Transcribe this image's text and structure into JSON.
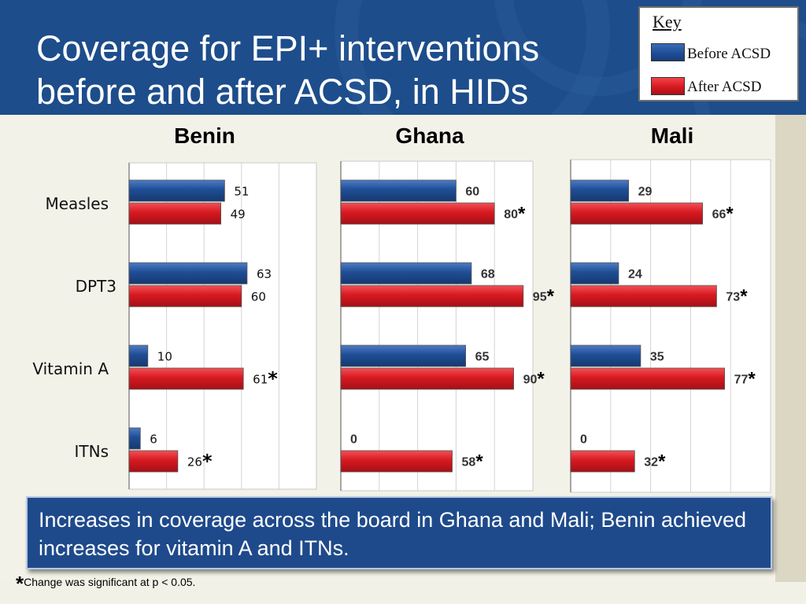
{
  "title": "Coverage for EPI+ interventions\nbefore and after ACSD, in HIDs",
  "key": {
    "title": "Key",
    "items": [
      {
        "label": "Before ACSD",
        "color": "#1f4e96"
      },
      {
        "label": "After ACSD",
        "color": "#d71920"
      }
    ]
  },
  "row_labels": [
    "Measles",
    "DPT3",
    "Vitamin A",
    "ITNs"
  ],
  "chart_data": [
    {
      "type": "bar",
      "orientation": "horizontal",
      "title": "Benin",
      "categories": [
        "Measles",
        "DPT3",
        "Vitamin A",
        "ITNs"
      ],
      "series": [
        {
          "name": "Before ACSD",
          "color": "#1f4e96",
          "values": [
            51,
            63,
            10,
            6
          ]
        },
        {
          "name": "After ACSD",
          "color": "#d71920",
          "values": [
            49,
            60,
            61,
            26
          ]
        }
      ],
      "significant_after": [
        false,
        false,
        true,
        true
      ],
      "xlim": [
        0,
        100
      ],
      "grid": true
    },
    {
      "type": "bar",
      "orientation": "horizontal",
      "title": "Ghana",
      "categories": [
        "Measles",
        "DPT3",
        "Vitamin A",
        "ITNs"
      ],
      "series": [
        {
          "name": "Before ACSD",
          "color": "#1f4e96",
          "values": [
            60,
            68,
            65,
            0
          ]
        },
        {
          "name": "After ACSD",
          "color": "#d71920",
          "values": [
            80,
            95,
            90,
            58
          ]
        }
      ],
      "significant_after": [
        true,
        true,
        true,
        true
      ],
      "xlim": [
        0,
        100
      ],
      "grid": true
    },
    {
      "type": "bar",
      "orientation": "horizontal",
      "title": "Mali",
      "categories": [
        "Measles",
        "DPT3",
        "Vitamin A",
        "ITNs"
      ],
      "series": [
        {
          "name": "Before ACSD",
          "color": "#1f4e96",
          "values": [
            29,
            24,
            35,
            0
          ]
        },
        {
          "name": "After ACSD",
          "color": "#d71920",
          "values": [
            66,
            73,
            77,
            32
          ]
        }
      ],
      "significant_after": [
        true,
        true,
        true,
        true
      ],
      "xlim": [
        0,
        100
      ],
      "grid": true
    }
  ],
  "significance_mark": "*",
  "summary": "Increases in coverage across the board in Ghana and Mali; Benin achieved increases for vitamin A and ITNs.",
  "footnote": {
    "mark": "*",
    "text": "Change was significant at p < 0.05."
  }
}
